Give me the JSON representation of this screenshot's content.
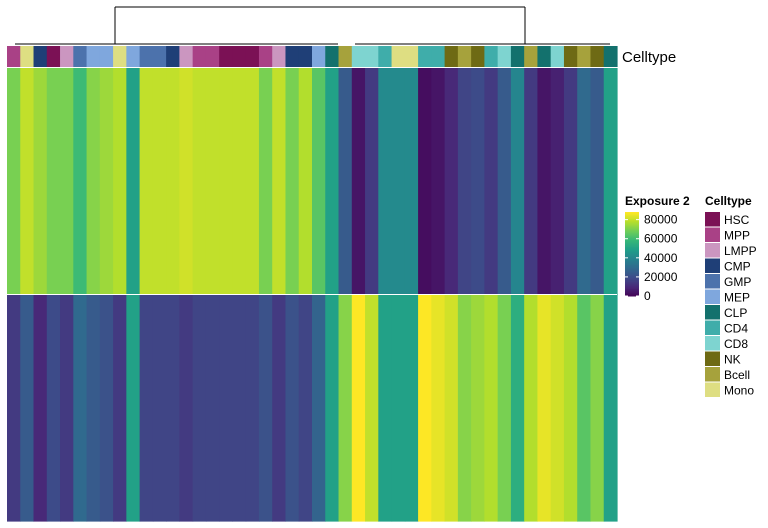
{
  "chart_data": {
    "type": "heatmap",
    "annotation_label": "Celltype",
    "rows": [
      "",
      ""
    ],
    "columns_celltype": [
      "MPP",
      "Mono",
      "CMP",
      "HSC",
      "LMPP",
      "GMP",
      "MEP",
      "MEP",
      "Mono",
      "MEP",
      "GMP",
      "GMP",
      "CMP",
      "LMPP",
      "MPP",
      "MPP",
      "HSC",
      "HSC",
      "HSC",
      "MPP",
      "LMPP",
      "CMP",
      "CMP",
      "MEP",
      "CLP",
      "Bcell",
      "CD8",
      "CD8",
      "CD4",
      "Mono",
      "Mono",
      "CD4",
      "CD4",
      "NK",
      "Bcell",
      "NK",
      "CD4",
      "CD8",
      "CLP",
      "Bcell",
      "CLP",
      "CD8",
      "NK",
      "Bcell",
      "NK",
      "CLP"
    ],
    "values": [
      [
        70000,
        80000,
        75000,
        70000,
        70000,
        60000,
        72000,
        75000,
        78000,
        50000,
        80000,
        80000,
        80000,
        82000,
        80000,
        80000,
        80000,
        80000,
        80000,
        70000,
        80000,
        70000,
        78000,
        65000,
        50000,
        25000,
        5000,
        15000,
        42000,
        42000,
        42000,
        3000,
        5000,
        10000,
        18000,
        20000,
        15000,
        25000,
        40000,
        15000,
        5000,
        8000,
        15000,
        30000,
        25000,
        50000
      ],
      [
        15000,
        25000,
        10000,
        20000,
        15000,
        30000,
        25000,
        22000,
        15000,
        50000,
        18000,
        18000,
        18000,
        15000,
        18000,
        18000,
        18000,
        18000,
        18000,
        22000,
        15000,
        22000,
        18000,
        28000,
        50000,
        72000,
        88000,
        80000,
        50000,
        50000,
        50000,
        88000,
        85000,
        82000,
        72000,
        75000,
        78000,
        70000,
        55000,
        78000,
        85000,
        82000,
        78000,
        65000,
        72000,
        50000
      ]
    ],
    "color_scale": {
      "title": "Exposure 2",
      "ticks": [
        80000,
        60000,
        40000,
        20000,
        0
      ],
      "range": [
        0,
        88000
      ]
    },
    "celltype_legend": {
      "title": "Celltype",
      "items": [
        {
          "name": "HSC",
          "color": "#7B1155"
        },
        {
          "name": "MPP",
          "color": "#A94186"
        },
        {
          "name": "LMPP",
          "color": "#CB96C0"
        },
        {
          "name": "CMP",
          "color": "#1F3F77"
        },
        {
          "name": "GMP",
          "color": "#4C72AC"
        },
        {
          "name": "MEP",
          "color": "#7FA7DD"
        },
        {
          "name": "CLP",
          "color": "#13716D"
        },
        {
          "name": "CD4",
          "color": "#3FADAA"
        },
        {
          "name": "CD8",
          "color": "#7ED4D0"
        },
        {
          "name": "NK",
          "color": "#6E6A14"
        },
        {
          "name": "Bcell",
          "color": "#A6A23C"
        },
        {
          "name": "Mono",
          "color": "#DEDE82"
        }
      ]
    }
  }
}
